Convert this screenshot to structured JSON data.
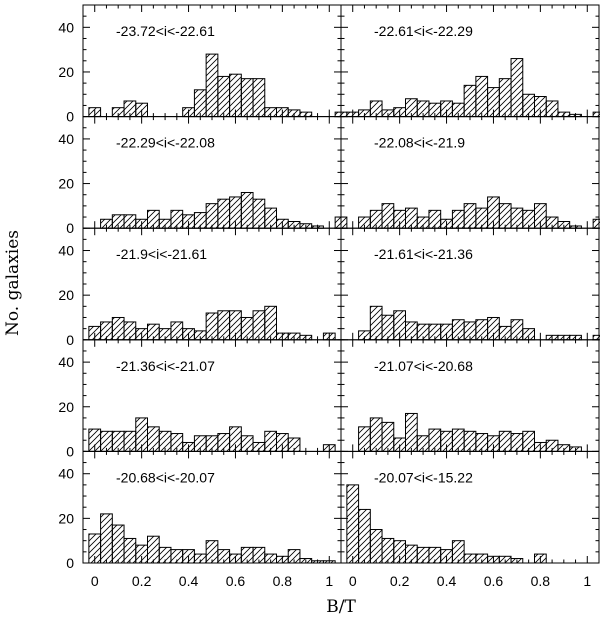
{
  "chart_data": {
    "type": "bar",
    "layout": "grid-5x2",
    "xlabel": "B/T",
    "ylabel": "No. galaxies",
    "xlim": [
      -0.05,
      1.05
    ],
    "ylim": [
      0,
      50
    ],
    "xticks": [
      0,
      0.2,
      0.4,
      0.6,
      0.8,
      1
    ],
    "xtick_labels": [
      "0",
      "0.2",
      "0.4",
      "0.6",
      "0.8",
      "1"
    ],
    "yticks": [
      0,
      20,
      40
    ],
    "ytick_labels": [
      "0",
      "20",
      "40"
    ],
    "bin_width": 0.05,
    "bin_starts": [
      -0.025,
      0.025,
      0.075,
      0.125,
      0.175,
      0.225,
      0.275,
      0.325,
      0.375,
      0.425,
      0.475,
      0.525,
      0.575,
      0.625,
      0.675,
      0.725,
      0.775,
      0.825,
      0.875,
      0.925,
      0.975,
      1.025
    ],
    "fill": "diagonal-hatch",
    "panels": [
      {
        "label": "-23.72<i<-22.61",
        "values": [
          4,
          0,
          4,
          7,
          6,
          0,
          0,
          0,
          4,
          12,
          28,
          18,
          19,
          17,
          17,
          4,
          4,
          3,
          2,
          0,
          0,
          2
        ]
      },
      {
        "label": "-22.61<i<-22.29",
        "values": [
          2,
          3,
          7,
          3,
          4,
          8,
          7,
          6,
          7,
          6,
          14,
          18,
          13,
          17,
          26,
          10,
          9,
          7,
          2,
          1,
          0,
          2
        ]
      },
      {
        "label": "-22.29<i<-22.08",
        "values": [
          0,
          4,
          6,
          6,
          4,
          8,
          4,
          8,
          6,
          7,
          11,
          13,
          14,
          16,
          13,
          9,
          4,
          3,
          2,
          1,
          0,
          5
        ]
      },
      {
        "label": "-22.08<i<-21.9",
        "values": [
          0,
          5,
          8,
          11,
          8,
          9,
          5,
          8,
          4,
          8,
          11,
          9,
          14,
          11,
          9,
          8,
          11,
          5,
          3,
          1,
          0,
          4
        ]
      },
      {
        "label": "-21.9<i<-21.61",
        "values": [
          6,
          8,
          10,
          8,
          5,
          7,
          5,
          8,
          5,
          4,
          12,
          13,
          13,
          10,
          13,
          15,
          3,
          3,
          2,
          0,
          3,
          0
        ]
      },
      {
        "label": "-21.61<i<-21.36",
        "values": [
          0,
          4,
          15,
          11,
          13,
          8,
          7,
          7,
          7,
          9,
          8,
          9,
          10,
          6,
          9,
          5,
          0,
          2,
          2,
          2,
          0,
          2
        ]
      },
      {
        "label": "-21.36<i<-21.07",
        "values": [
          10,
          9,
          9,
          9,
          15,
          11,
          9,
          8,
          4,
          7,
          7,
          8,
          11,
          7,
          4,
          9,
          8,
          6,
          0,
          0,
          3,
          0
        ]
      },
      {
        "label": "-21.07<i<-20.68",
        "values": [
          0,
          11,
          15,
          13,
          6,
          17,
          7,
          10,
          9,
          10,
          9,
          8,
          7,
          9,
          8,
          9,
          4,
          5,
          3,
          2,
          0,
          0
        ]
      },
      {
        "label": "-20.68<i<-20.07",
        "values": [
          13,
          22,
          17,
          11,
          8,
          12,
          7,
          6,
          6,
          4,
          10,
          6,
          4,
          7,
          7,
          4,
          3,
          6,
          2,
          1,
          1,
          0
        ]
      },
      {
        "label": "-20.07<i<-15.22",
        "values": [
          35,
          24,
          15,
          11,
          10,
          8,
          7,
          7,
          6,
          10,
          4,
          4,
          3,
          3,
          2,
          0,
          4,
          0,
          0,
          0,
          0,
          0
        ]
      }
    ]
  }
}
